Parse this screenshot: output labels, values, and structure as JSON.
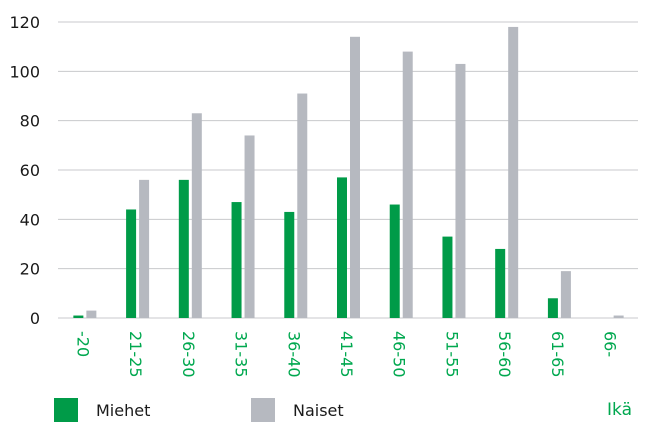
{
  "chart_data": {
    "type": "bar",
    "categories": [
      "-20",
      "21-25",
      "26-30",
      "31-35",
      "36-40",
      "41-45",
      "46-50",
      "51-55",
      "56-60",
      "61-65",
      "66-"
    ],
    "series": [
      {
        "name": "Miehet",
        "values": [
          1,
          44,
          56,
          47,
          43,
          57,
          46,
          33,
          28,
          8,
          0
        ]
      },
      {
        "name": "Naiset",
        "values": [
          3,
          56,
          83,
          74,
          91,
          114,
          108,
          103,
          118,
          19,
          1
        ]
      }
    ],
    "xlabel": "Ikä",
    "ylim": [
      0,
      120
    ],
    "yticks": [
      0,
      20,
      40,
      60,
      80,
      100,
      120
    ],
    "grid": true,
    "legend_position": "bottom",
    "colors": {
      "Miehet": "#009b48",
      "Naiset": "#b6b9c0",
      "grid": "#c8cacc",
      "category_label": "#00a84f"
    }
  }
}
